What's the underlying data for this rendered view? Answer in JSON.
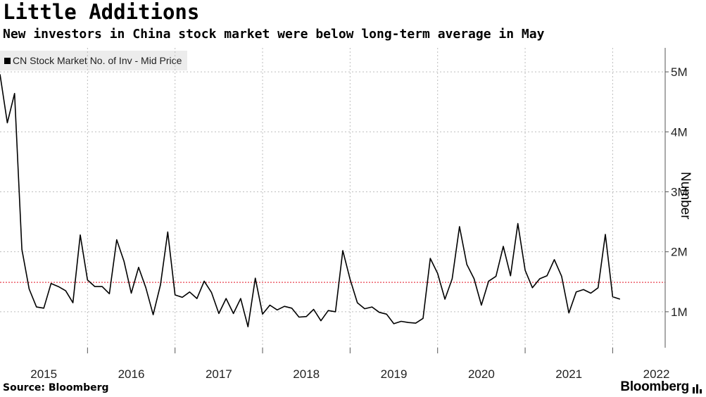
{
  "title": "Little Additions",
  "subtitle": "New investors in China stock market were below long-term average in May",
  "source": "Source: Bloomberg",
  "brand": "Bloomberg",
  "colors": {
    "line": "#000000",
    "average": "#e8414e",
    "grid": "#bdbdbd"
  },
  "chart_data": {
    "type": "line",
    "title": "Little Additions",
    "subtitle": "New investors in China stock market were below long-term average in May",
    "xlabel": "",
    "ylabel": "Number",
    "legend": [
      "CN Stock Market No. of Inv - Mid Price"
    ],
    "legend_position": "top-left",
    "x_tick_labels": [
      "2015",
      "2016",
      "2017",
      "2018",
      "2019",
      "2020",
      "2021",
      "2022"
    ],
    "y_tick_labels": [
      "1M",
      "2M",
      "3M",
      "4M",
      "5M"
    ],
    "y_ticks": [
      1000000,
      2000000,
      3000000,
      4000000,
      5000000
    ],
    "xlim": [
      2015.0,
      2022.6
    ],
    "ylim": [
      400000,
      5400000
    ],
    "average_line": 1490000,
    "grid": true,
    "series": [
      {
        "name": "CN Stock Market No. of Inv - Mid Price",
        "x_start": 2015.0,
        "step_months": 1,
        "values": [
          4960000,
          4150000,
          4640000,
          2040000,
          1380000,
          1080000,
          1060000,
          1470000,
          1420000,
          1350000,
          1150000,
          2280000,
          1530000,
          1420000,
          1420000,
          1300000,
          2200000,
          1840000,
          1310000,
          1740000,
          1400000,
          950000,
          1450000,
          2330000,
          1280000,
          1240000,
          1330000,
          1220000,
          1510000,
          1320000,
          970000,
          1220000,
          970000,
          1220000,
          750000,
          1560000,
          960000,
          1110000,
          1030000,
          1090000,
          1060000,
          910000,
          920000,
          1040000,
          850000,
          1020000,
          1000000,
          2020000,
          1540000,
          1150000,
          1050000,
          1080000,
          990000,
          960000,
          800000,
          840000,
          820000,
          810000,
          890000,
          1890000,
          1640000,
          1210000,
          1550000,
          2420000,
          1790000,
          1550000,
          1110000,
          1510000,
          1590000,
          2090000,
          1600000,
          2470000,
          1690000,
          1400000,
          1550000,
          1600000,
          1870000,
          1590000,
          980000,
          1330000,
          1370000,
          1310000,
          1400000,
          2290000,
          1250000,
          1210000
        ]
      }
    ]
  }
}
